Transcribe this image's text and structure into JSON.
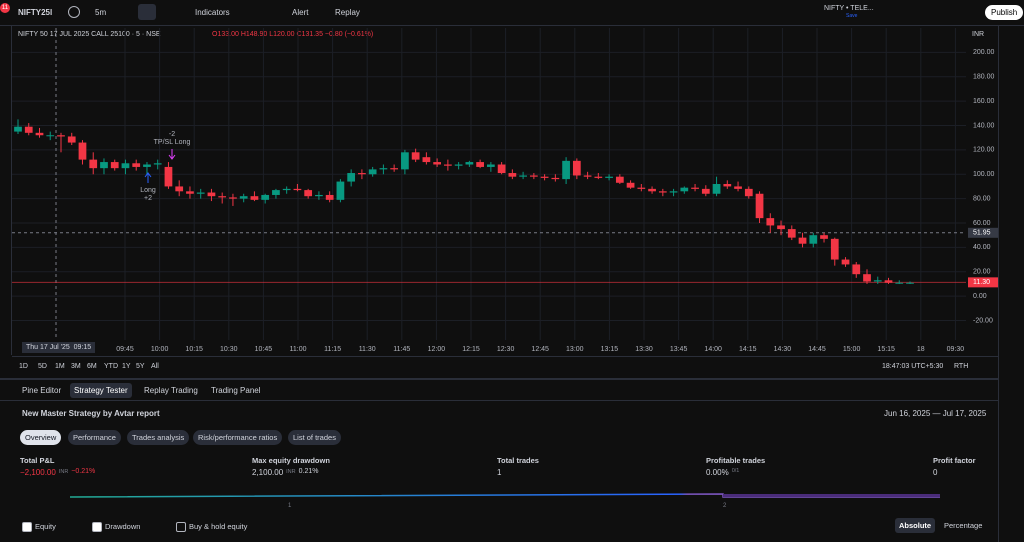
{
  "toolbar": {
    "symbol": "NIFTY25l",
    "notifications": "11",
    "interval": "5m",
    "indicators": "Indicators",
    "alert": "Alert",
    "replay": "Replay",
    "layout_name": "NIFTY • TELE...",
    "layout_status": "Save",
    "publish": "Publish"
  },
  "chart": {
    "legend": {
      "title": "NIFTY 50 17 JUL 2025 CALL 25100 · 5 · NSE",
      "open": "O133.00",
      "high": "H148.90",
      "low": "L120.00",
      "close": "C131.35",
      "change": "−0.80 (−0.61%)"
    },
    "currency": "INR",
    "ylim": [
      -36,
      220
    ],
    "yticks": [
      {
        "value": 200,
        "label": "200.00"
      },
      {
        "value": 180,
        "label": "180.00"
      },
      {
        "value": 160,
        "label": "160.00"
      },
      {
        "value": 140,
        "label": "140.00"
      },
      {
        "value": 120,
        "label": "120.00"
      },
      {
        "value": 100,
        "label": "100.00"
      },
      {
        "value": 80,
        "label": "80.00"
      },
      {
        "value": 60,
        "label": "60.00"
      },
      {
        "value": 40,
        "label": "40.00"
      },
      {
        "value": 20,
        "label": "20.00"
      },
      {
        "value": 0,
        "label": "0.00"
      },
      {
        "value": -20,
        "label": "-20.00"
      }
    ],
    "crosshair_price": 51.95,
    "current_price": {
      "value": 11.3,
      "label": "11.30"
    },
    "crosshair_date": "Thu 17 Jul '25",
    "crosshair_time": "09:15",
    "time_labels": [
      "09:45",
      "10:00",
      "10:15",
      "10:30",
      "10:45",
      "11:00",
      "11:15",
      "11:30",
      "11:45",
      "12:00",
      "12:15",
      "12:30",
      "12:45",
      "13:00",
      "13:15",
      "13:30",
      "13:45",
      "14:00",
      "14:15",
      "14:30",
      "14:45",
      "15:00",
      "15:15",
      "18",
      "09:30"
    ],
    "annotations": {
      "short_qty": "-2",
      "short_label": "TP/SL Long",
      "long_label": "Long",
      "long_qty": "+2"
    },
    "up_color": "#089981",
    "down_color": "#f23645",
    "candles": [
      [
        135,
        145,
        133,
        139
      ],
      [
        139,
        142,
        132,
        134
      ],
      [
        134,
        138,
        130,
        132
      ],
      [
        132,
        135,
        128,
        132
      ],
      [
        132,
        134,
        118,
        131
      ],
      [
        131,
        134,
        124,
        126
      ],
      [
        126,
        128,
        108,
        112
      ],
      [
        112,
        118,
        100,
        105
      ],
      [
        105,
        113,
        100,
        110
      ],
      [
        110,
        112,
        103,
        105
      ],
      [
        105,
        112,
        100,
        109
      ],
      [
        109,
        112,
        103,
        106
      ],
      [
        106,
        110,
        100,
        108
      ],
      [
        108,
        112,
        104,
        109
      ],
      [
        106,
        110,
        88,
        90
      ],
      [
        90,
        95,
        82,
        86
      ],
      [
        86,
        90,
        80,
        84
      ],
      [
        84,
        88,
        80,
        85
      ],
      [
        85,
        88,
        78,
        82
      ],
      [
        82,
        85,
        76,
        81
      ],
      [
        81,
        84,
        74,
        80
      ],
      [
        80,
        84,
        77,
        82
      ],
      [
        82,
        86,
        78,
        79
      ],
      [
        79,
        84,
        76,
        83
      ],
      [
        83,
        88,
        80,
        87
      ],
      [
        87,
        90,
        84,
        88
      ],
      [
        88,
        92,
        86,
        87
      ],
      [
        87,
        88,
        80,
        82
      ],
      [
        82,
        86,
        79,
        83
      ],
      [
        83,
        86,
        77,
        79
      ],
      [
        79,
        96,
        77,
        94
      ],
      [
        94,
        104,
        90,
        101
      ],
      [
        101,
        104,
        96,
        100
      ],
      [
        100,
        106,
        98,
        104
      ],
      [
        104,
        108,
        100,
        105
      ],
      [
        105,
        108,
        102,
        104
      ],
      [
        104,
        120,
        100,
        118
      ],
      [
        118,
        121,
        110,
        112
      ],
      [
        114,
        118,
        108,
        110
      ],
      [
        110,
        113,
        106,
        108
      ],
      [
        108,
        112,
        103,
        107
      ],
      [
        107,
        110,
        104,
        108
      ],
      [
        108,
        111,
        106,
        110
      ],
      [
        110,
        112,
        105,
        106
      ],
      [
        106,
        110,
        102,
        108
      ],
      [
        108,
        110,
        100,
        101
      ],
      [
        101,
        104,
        96,
        98
      ],
      [
        98,
        102,
        96,
        99
      ],
      [
        99,
        101,
        96,
        98
      ],
      [
        98,
        100,
        95,
        97
      ],
      [
        97,
        100,
        94,
        96
      ],
      [
        96,
        114,
        92,
        111
      ],
      [
        111,
        113,
        96,
        99
      ],
      [
        99,
        102,
        96,
        98
      ],
      [
        98,
        101,
        96,
        97
      ],
      [
        97,
        100,
        95,
        98
      ],
      [
        98,
        100,
        92,
        93
      ],
      [
        93,
        95,
        88,
        89
      ],
      [
        89,
        92,
        86,
        88
      ],
      [
        88,
        90,
        84,
        86
      ],
      [
        86,
        88,
        82,
        85
      ],
      [
        85,
        88,
        82,
        86
      ],
      [
        86,
        90,
        84,
        89
      ],
      [
        89,
        92,
        86,
        88
      ],
      [
        88,
        91,
        82,
        84
      ],
      [
        84,
        98,
        82,
        92
      ],
      [
        92,
        95,
        88,
        90
      ],
      [
        90,
        94,
        86,
        88
      ],
      [
        88,
        90,
        80,
        82
      ],
      [
        84,
        86,
        60,
        64
      ],
      [
        64,
        68,
        52,
        58
      ],
      [
        58,
        62,
        50,
        55
      ],
      [
        55,
        58,
        46,
        48
      ],
      [
        48,
        52,
        40,
        43
      ],
      [
        43,
        52,
        40,
        50
      ],
      [
        50,
        52,
        44,
        47
      ],
      [
        47,
        48,
        25,
        30
      ],
      [
        30,
        32,
        24,
        26
      ],
      [
        26,
        28,
        15,
        18
      ],
      [
        18,
        22,
        10,
        12
      ],
      [
        12,
        16,
        10,
        13
      ],
      [
        13,
        15,
        10,
        11
      ],
      [
        11,
        13,
        10,
        11
      ],
      [
        11,
        12,
        10,
        11
      ]
    ],
    "ranges": [
      "1D",
      "5D",
      "1M",
      "3M",
      "6M",
      "YTD",
      "1Y",
      "5Y",
      "All"
    ],
    "clock": "18:47:03 UTC+5:30",
    "session": "RTH"
  },
  "panel": {
    "tabs": [
      "Pine Editor",
      "Strategy Tester",
      "Replay Trading",
      "Trading Panel"
    ],
    "report": "New Master Strategy by Avtar report",
    "date_range": "Jun 16, 2025 — Jul 17, 2025",
    "subtabs": [
      "Overview",
      "Performance",
      "Trades analysis",
      "Risk/performance ratios",
      "List of trades"
    ],
    "metrics": [
      {
        "label": "Total P&L",
        "value": "−2,100.00",
        "unit": "INR",
        "extra": "−0.21%"
      },
      {
        "label": "Max equity drawdown",
        "value": "2,100.00",
        "unit": "INR",
        "extra": "0.21%"
      },
      {
        "label": "Total trades",
        "value": "1"
      },
      {
        "label": "Profitable trades",
        "value": "0.00%",
        "extra": "0/1"
      },
      {
        "label": "Profit factor",
        "value": "0"
      }
    ],
    "equity_axis": [
      "1",
      "2"
    ],
    "toggles": [
      "Equity",
      "Drawdown",
      "Buy & hold equity"
    ],
    "modes": [
      "Absolute",
      "Percentage"
    ]
  }
}
